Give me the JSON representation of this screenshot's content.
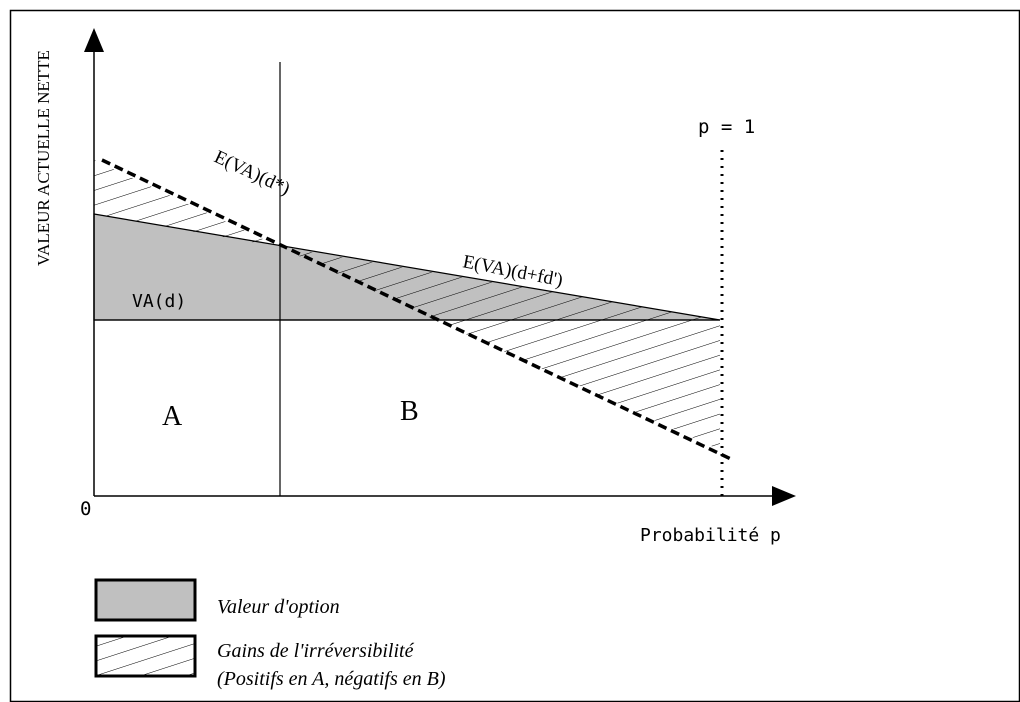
{
  "diagram": {
    "y_axis_label": "VALEUR ACTUELLE NETTE",
    "x_axis_label": "Probabilité p",
    "origin_label": "0",
    "p1_label": "p = 1",
    "curve_dstar_label": "E(VA)(d*)",
    "curve_dfd_label": "E(VA)(d+fd')",
    "vad_label": "VA(d)",
    "region_a_label": "A",
    "region_b_label": "B"
  },
  "legend": {
    "option_value_label": "Valeur d'option",
    "irreversibility_label": "Gains de l'irréversibilité",
    "irreversibility_note": "(Positifs en A, négatifs en B)"
  },
  "colors": {
    "option_fill": "#c0c0c0",
    "line": "#000000",
    "background": "#ffffff"
  }
}
